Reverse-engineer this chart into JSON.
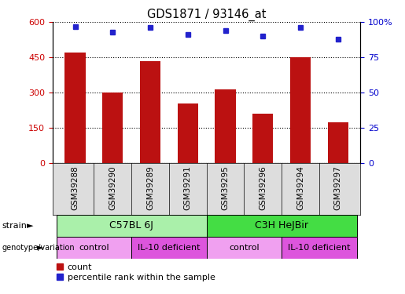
{
  "title": "GDS1871 / 93146_at",
  "samples": [
    "GSM39288",
    "GSM39290",
    "GSM39289",
    "GSM39291",
    "GSM39295",
    "GSM39296",
    "GSM39294",
    "GSM39297"
  ],
  "counts": [
    470,
    300,
    435,
    255,
    315,
    210,
    450,
    175
  ],
  "percentiles": [
    97,
    93,
    96,
    91,
    94,
    90,
    96,
    88
  ],
  "ylim_left": [
    0,
    600
  ],
  "ylim_right": [
    0,
    100
  ],
  "yticks_left": [
    0,
    150,
    300,
    450,
    600
  ],
  "yticks_right": [
    0,
    25,
    50,
    75,
    100
  ],
  "ytick_labels_right": [
    "0",
    "25",
    "50",
    "75",
    "100%"
  ],
  "bar_color": "#bb1111",
  "marker_color": "#2222cc",
  "strain_labels": [
    {
      "label": "C57BL 6J",
      "start": 0,
      "end": 4,
      "color": "#aaf0aa"
    },
    {
      "label": "C3H HeJBir",
      "start": 4,
      "end": 8,
      "color": "#44dd44"
    }
  ],
  "genotype_labels": [
    {
      "label": "control",
      "start": 0,
      "end": 2,
      "color": "#f0a0f0"
    },
    {
      "label": "IL-10 deficient",
      "start": 2,
      "end": 4,
      "color": "#dd55dd"
    },
    {
      "label": "control",
      "start": 4,
      "end": 6,
      "color": "#f0a0f0"
    },
    {
      "label": "IL-10 deficient",
      "start": 6,
      "end": 8,
      "color": "#dd55dd"
    }
  ],
  "legend_count_color": "#bb1111",
  "legend_marker_color": "#2222cc",
  "tick_label_color_left": "#cc0000",
  "tick_label_color_right": "#0000cc"
}
